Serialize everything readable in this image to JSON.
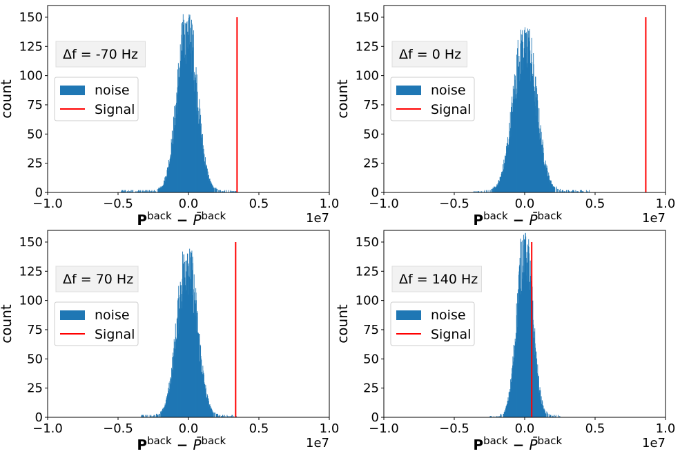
{
  "chart_data": [
    {
      "type": "bar",
      "title": "",
      "annotation_prefix": "Δf = ",
      "annotation_value": "-70 Hz",
      "xlabel_main": "P",
      "xlabel_sup": "back",
      "xlabel_minus": " − ",
      "xlabel_bar": "P̄",
      "xlabel_bar_sup": "back",
      "ylabel": "count",
      "xlim": [
        -1.0,
        1.0
      ],
      "ylim": [
        0,
        160
      ],
      "x_offset_label": "1e7",
      "xticks": [
        -1.0,
        -0.5,
        0.0,
        0.5,
        1.0
      ],
      "xtick_labels": [
        "−1.0",
        "−0.5",
        "0.0",
        "0.5",
        "1.0"
      ],
      "yticks": [
        0,
        25,
        50,
        75,
        100,
        125,
        150
      ],
      "ytick_labels": [
        "0",
        "25",
        "50",
        "75",
        "100",
        "125",
        "150"
      ],
      "legend": [
        "noise",
        "Signal"
      ],
      "legend_loc": "center-left",
      "noise_center": -0.01,
      "noise_width": 0.07,
      "noise_peak": 153,
      "noise_range": [
        -0.48,
        0.34
      ],
      "signal_x": 0.345,
      "signal_height": 150,
      "colors": {
        "noise": "#1f77b4",
        "signal": "#ff0000"
      }
    },
    {
      "type": "bar",
      "title": "",
      "annotation_prefix": "Δf = ",
      "annotation_value": "0 Hz",
      "xlabel_main": "P",
      "xlabel_sup": "back",
      "xlabel_minus": " − ",
      "xlabel_bar": "P̄",
      "xlabel_bar_sup": "back",
      "ylabel": "count",
      "xlim": [
        -1.0,
        1.0
      ],
      "ylim": [
        0,
        160
      ],
      "x_offset_label": "1e7",
      "xticks": [
        -1.0,
        -0.5,
        0.0,
        0.5,
        1.0
      ],
      "xtick_labels": [
        "−1.0",
        "−0.5",
        "0.0",
        "0.5",
        "1.0"
      ],
      "yticks": [
        0,
        25,
        50,
        75,
        100,
        125,
        150
      ],
      "ytick_labels": [
        "0",
        "25",
        "50",
        "75",
        "100",
        "125",
        "150"
      ],
      "legend": [
        "noise",
        "Signal"
      ],
      "legend_loc": "center-left",
      "noise_center": 0.0,
      "noise_width": 0.08,
      "noise_peak": 142,
      "noise_range": [
        -0.38,
        0.47
      ],
      "signal_x": 0.86,
      "signal_height": 150,
      "colors": {
        "noise": "#1f77b4",
        "signal": "#ff0000"
      }
    },
    {
      "type": "bar",
      "title": "",
      "annotation_prefix": "Δf = ",
      "annotation_value": "70 Hz",
      "xlabel_main": "P",
      "xlabel_sup": "back",
      "xlabel_minus": " − ",
      "xlabel_bar": "P̄",
      "xlabel_bar_sup": "back",
      "ylabel": "count",
      "xlim": [
        -1.0,
        1.0
      ],
      "ylim": [
        0,
        160
      ],
      "x_offset_label": "1e7",
      "xticks": [
        -1.0,
        -0.5,
        0.0,
        0.5,
        1.0
      ],
      "xtick_labels": [
        "−1.0",
        "−0.5",
        "0.0",
        "0.5",
        "1.0"
      ],
      "yticks": [
        0,
        25,
        50,
        75,
        100,
        125,
        150
      ],
      "ytick_labels": [
        "0",
        "25",
        "50",
        "75",
        "100",
        "125",
        "150"
      ],
      "legend": [
        "noise",
        "Signal"
      ],
      "legend_loc": "center-left",
      "noise_center": -0.01,
      "noise_width": 0.07,
      "noise_peak": 145,
      "noise_range": [
        -0.34,
        0.34
      ],
      "signal_x": 0.335,
      "signal_height": 150,
      "colors": {
        "noise": "#1f77b4",
        "signal": "#ff0000"
      }
    },
    {
      "type": "bar",
      "title": "",
      "annotation_prefix": "Δf = ",
      "annotation_value": "140 Hz",
      "xlabel_main": "P",
      "xlabel_sup": "back",
      "xlabel_minus": " − ",
      "xlabel_bar": "P̄",
      "xlabel_bar_sup": "back",
      "ylabel": "count",
      "xlim": [
        -1.0,
        1.0
      ],
      "ylim": [
        0,
        160
      ],
      "x_offset_label": "1e7",
      "xticks": [
        -1.0,
        -0.5,
        0.0,
        0.5,
        1.0
      ],
      "xtick_labels": [
        "−1.0",
        "−0.5",
        "0.0",
        "0.5",
        "1.0"
      ],
      "yticks": [
        0,
        25,
        50,
        75,
        100,
        125,
        150
      ],
      "ytick_labels": [
        "0",
        "25",
        "50",
        "75",
        "100",
        "125",
        "150"
      ],
      "legend": [
        "noise",
        "Signal"
      ],
      "legend_loc": "center-left",
      "noise_center": 0.0,
      "noise_width": 0.055,
      "noise_peak": 158,
      "noise_range": [
        -0.25,
        0.25
      ],
      "signal_x": 0.05,
      "signal_height": 150,
      "colors": {
        "noise": "#1f77b4",
        "signal": "#ff0000"
      }
    }
  ]
}
